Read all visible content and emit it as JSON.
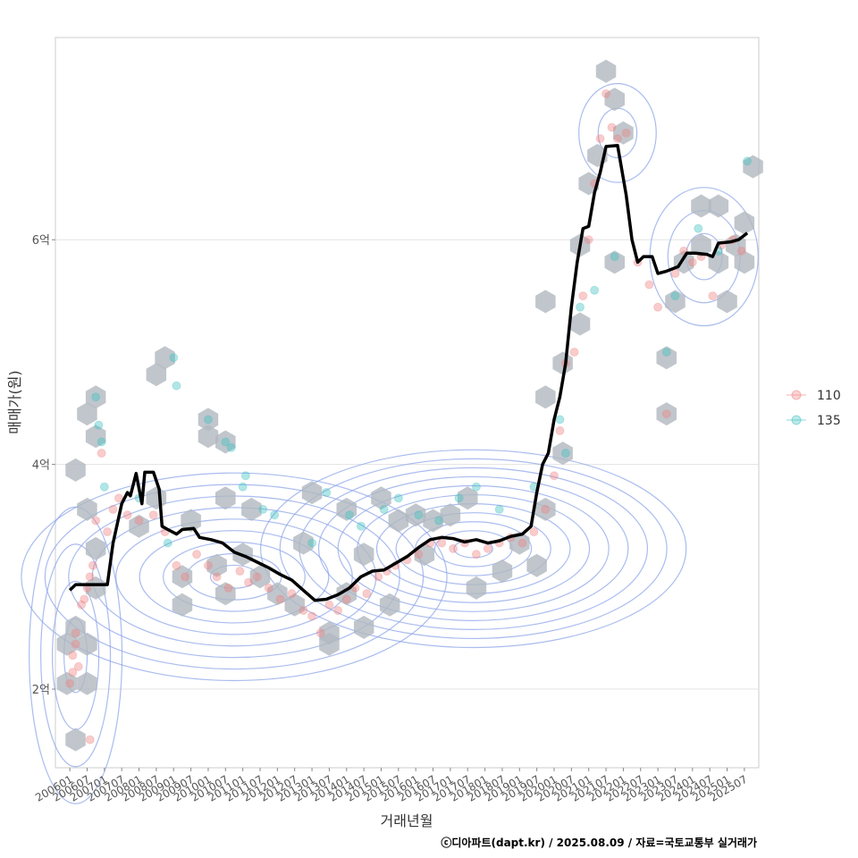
{
  "chart_data": {
    "type": "scatter",
    "xlabel": "거래년월",
    "ylabel": "매매가(원)",
    "credit": "ⓒ디아파트(dapt.kr) / 2025.08.09 / 자료=국토교통부 실거래가",
    "x_range": [
      "2005-08",
      "2025-12"
    ],
    "ylim": [
      1.3,
      7.8
    ],
    "y_ticks": [
      {
        "value": 2,
        "label": "2억"
      },
      {
        "value": 4,
        "label": "4억"
      },
      {
        "value": 6,
        "label": "6억"
      }
    ],
    "x_ticks": [
      "200601",
      "200607",
      "200701",
      "200707",
      "200801",
      "200807",
      "200901",
      "200907",
      "201001",
      "201007",
      "201101",
      "201107",
      "201201",
      "201207",
      "201301",
      "201307",
      "201401",
      "201407",
      "201501",
      "201507",
      "201601",
      "201607",
      "201701",
      "201707",
      "201801",
      "201807",
      "201901",
      "201907",
      "202001",
      "202007",
      "202101",
      "202107",
      "202201",
      "202207",
      "202301",
      "202307",
      "202401",
      "202407",
      "202501",
      "202507"
    ],
    "grid": true,
    "legend": {
      "position": "right",
      "entries": [
        {
          "name": "110",
          "color": "#f08080"
        },
        {
          "name": "135",
          "color": "#3cc1c1"
        }
      ]
    },
    "colors": {
      "series_110": "#f08080",
      "series_135": "#3cc1c1",
      "trend_line": "#000000",
      "hex_bins": "#b0b8bf",
      "contours": "#8ea6ea"
    },
    "series": [
      {
        "name": "110",
        "points": [
          {
            "x": "2006-01",
            "y": 2.05
          },
          {
            "x": "2006-02",
            "y": 2.15
          },
          {
            "x": "2006-02",
            "y": 2.3
          },
          {
            "x": "2006-03",
            "y": 2.4
          },
          {
            "x": "2006-03",
            "y": 2.5
          },
          {
            "x": "2006-04",
            "y": 2.2
          },
          {
            "x": "2006-05",
            "y": 2.75
          },
          {
            "x": "2006-06",
            "y": 2.8
          },
          {
            "x": "2006-07",
            "y": 2.9
          },
          {
            "x": "2006-08",
            "y": 3.0
          },
          {
            "x": "2006-09",
            "y": 3.1
          },
          {
            "x": "2006-10",
            "y": 3.5
          },
          {
            "x": "2006-12",
            "y": 4.1
          },
          {
            "x": "2007-02",
            "y": 3.4
          },
          {
            "x": "2007-04",
            "y": 3.6
          },
          {
            "x": "2007-06",
            "y": 3.7
          },
          {
            "x": "2006-08",
            "y": 1.55
          },
          {
            "x": "2007-09",
            "y": 3.55
          },
          {
            "x": "2008-01",
            "y": 3.5
          },
          {
            "x": "2008-06",
            "y": 3.55
          },
          {
            "x": "2008-10",
            "y": 3.4
          },
          {
            "x": "2009-02",
            "y": 3.1
          },
          {
            "x": "2009-05",
            "y": 3.0
          },
          {
            "x": "2009-09",
            "y": 3.2
          },
          {
            "x": "2010-01",
            "y": 3.1
          },
          {
            "x": "2010-04",
            "y": 3.0
          },
          {
            "x": "2010-08",
            "y": 2.9
          },
          {
            "x": "2010-12",
            "y": 3.05
          },
          {
            "x": "2011-03",
            "y": 2.95
          },
          {
            "x": "2011-06",
            "y": 3.0
          },
          {
            "x": "2011-10",
            "y": 2.9
          },
          {
            "x": "2012-02",
            "y": 2.8
          },
          {
            "x": "2012-06",
            "y": 2.85
          },
          {
            "x": "2012-10",
            "y": 2.7
          },
          {
            "x": "2013-01",
            "y": 2.65
          },
          {
            "x": "2013-04",
            "y": 2.5
          },
          {
            "x": "2013-07",
            "y": 2.75
          },
          {
            "x": "2013-10",
            "y": 2.7
          },
          {
            "x": "2014-01",
            "y": 2.8
          },
          {
            "x": "2014-04",
            "y": 2.9
          },
          {
            "x": "2014-08",
            "y": 2.85
          },
          {
            "x": "2014-12",
            "y": 3.0
          },
          {
            "x": "2015-03",
            "y": 3.05
          },
          {
            "x": "2015-06",
            "y": 3.1
          },
          {
            "x": "2015-10",
            "y": 3.15
          },
          {
            "x": "2016-02",
            "y": 3.2
          },
          {
            "x": "2016-06",
            "y": 3.3
          },
          {
            "x": "2016-10",
            "y": 3.3
          },
          {
            "x": "2017-02",
            "y": 3.25
          },
          {
            "x": "2017-06",
            "y": 3.3
          },
          {
            "x": "2017-10",
            "y": 3.2
          },
          {
            "x": "2018-02",
            "y": 3.25
          },
          {
            "x": "2018-06",
            "y": 3.3
          },
          {
            "x": "2018-10",
            "y": 3.35
          },
          {
            "x": "2019-02",
            "y": 3.3
          },
          {
            "x": "2019-06",
            "y": 3.4
          },
          {
            "x": "2019-10",
            "y": 3.6
          },
          {
            "x": "2020-01",
            "y": 3.9
          },
          {
            "x": "2020-03",
            "y": 4.3
          },
          {
            "x": "2020-05",
            "y": 4.9
          },
          {
            "x": "2020-08",
            "y": 5.0
          },
          {
            "x": "2020-11",
            "y": 5.5
          },
          {
            "x": "2021-01",
            "y": 6.0
          },
          {
            "x": "2021-03",
            "y": 6.5
          },
          {
            "x": "2021-05",
            "y": 6.9
          },
          {
            "x": "2021-07",
            "y": 7.3
          },
          {
            "x": "2021-09",
            "y": 7.0
          },
          {
            "x": "2021-11",
            "y": 6.9
          },
          {
            "x": "2022-02",
            "y": 6.95
          },
          {
            "x": "2022-06",
            "y": 5.8
          },
          {
            "x": "2022-10",
            "y": 5.6
          },
          {
            "x": "2023-01",
            "y": 5.4
          },
          {
            "x": "2023-04",
            "y": 4.45
          },
          {
            "x": "2023-07",
            "y": 5.7
          },
          {
            "x": "2023-10",
            "y": 5.9
          },
          {
            "x": "2024-01",
            "y": 5.8
          },
          {
            "x": "2024-04",
            "y": 5.85
          },
          {
            "x": "2024-08",
            "y": 5.5
          },
          {
            "x": "2024-11",
            "y": 5.95
          },
          {
            "x": "2025-03",
            "y": 6.0
          },
          {
            "x": "2025-06",
            "y": 5.9
          }
        ]
      },
      {
        "name": "135",
        "points": [
          {
            "x": "2006-10",
            "y": 4.6
          },
          {
            "x": "2006-11",
            "y": 4.35
          },
          {
            "x": "2006-12",
            "y": 4.2
          },
          {
            "x": "2007-01",
            "y": 3.8
          },
          {
            "x": "2008-01",
            "y": 3.7
          },
          {
            "x": "2008-11",
            "y": 3.3
          },
          {
            "x": "2009-01",
            "y": 4.95
          },
          {
            "x": "2009-02",
            "y": 4.7
          },
          {
            "x": "2010-01",
            "y": 4.4
          },
          {
            "x": "2010-07",
            "y": 4.2
          },
          {
            "x": "2010-09",
            "y": 4.15
          },
          {
            "x": "2011-01",
            "y": 3.8
          },
          {
            "x": "2011-02",
            "y": 3.9
          },
          {
            "x": "2011-08",
            "y": 3.6
          },
          {
            "x": "2011-12",
            "y": 3.55
          },
          {
            "x": "2013-01",
            "y": 3.3
          },
          {
            "x": "2013-06",
            "y": 3.75
          },
          {
            "x": "2014-02",
            "y": 3.55
          },
          {
            "x": "2014-06",
            "y": 3.45
          },
          {
            "x": "2015-02",
            "y": 3.6
          },
          {
            "x": "2015-07",
            "y": 3.7
          },
          {
            "x": "2016-02",
            "y": 3.55
          },
          {
            "x": "2016-09",
            "y": 3.5
          },
          {
            "x": "2017-04",
            "y": 3.7
          },
          {
            "x": "2017-10",
            "y": 3.8
          },
          {
            "x": "2018-06",
            "y": 3.6
          },
          {
            "x": "2019-06",
            "y": 3.8
          },
          {
            "x": "2020-03",
            "y": 4.4
          },
          {
            "x": "2020-05",
            "y": 4.1
          },
          {
            "x": "2020-10",
            "y": 5.4
          },
          {
            "x": "2021-03",
            "y": 5.55
          },
          {
            "x": "2021-10",
            "y": 5.85
          },
          {
            "x": "2023-04",
            "y": 5.0
          },
          {
            "x": "2023-07",
            "y": 5.5
          },
          {
            "x": "2024-03",
            "y": 6.1
          },
          {
            "x": "2024-10",
            "y": 5.9
          },
          {
            "x": "2025-08",
            "y": 6.7
          }
        ]
      }
    ],
    "trend_line": [
      {
        "x": "2006-01",
        "y": 2.88
      },
      {
        "x": "2006-03",
        "y": 2.93
      },
      {
        "x": "2007-02",
        "y": 2.93
      },
      {
        "x": "2007-04",
        "y": 3.3
      },
      {
        "x": "2007-07",
        "y": 3.65
      },
      {
        "x": "2007-09",
        "y": 3.75
      },
      {
        "x": "2007-10",
        "y": 3.72
      },
      {
        "x": "2007-12",
        "y": 3.92
      },
      {
        "x": "2008-02",
        "y": 3.65
      },
      {
        "x": "2008-03",
        "y": 3.93
      },
      {
        "x": "2008-06",
        "y": 3.93
      },
      {
        "x": "2008-08",
        "y": 3.78
      },
      {
        "x": "2008-09",
        "y": 3.45
      },
      {
        "x": "2008-11",
        "y": 3.42
      },
      {
        "x": "2009-02",
        "y": 3.38
      },
      {
        "x": "2009-04",
        "y": 3.42
      },
      {
        "x": "2009-08",
        "y": 3.43
      },
      {
        "x": "2009-10",
        "y": 3.35
      },
      {
        "x": "2010-02",
        "y": 3.33
      },
      {
        "x": "2010-06",
        "y": 3.3
      },
      {
        "x": "2010-10",
        "y": 3.22
      },
      {
        "x": "2011-02",
        "y": 3.18
      },
      {
        "x": "2011-06",
        "y": 3.13
      },
      {
        "x": "2011-10",
        "y": 3.08
      },
      {
        "x": "2012-02",
        "y": 3.02
      },
      {
        "x": "2012-06",
        "y": 2.97
      },
      {
        "x": "2012-10",
        "y": 2.88
      },
      {
        "x": "2013-02",
        "y": 2.79
      },
      {
        "x": "2013-06",
        "y": 2.8
      },
      {
        "x": "2013-10",
        "y": 2.84
      },
      {
        "x": "2014-02",
        "y": 2.9
      },
      {
        "x": "2014-06",
        "y": 3.0
      },
      {
        "x": "2014-10",
        "y": 3.05
      },
      {
        "x": "2015-02",
        "y": 3.06
      },
      {
        "x": "2015-06",
        "y": 3.12
      },
      {
        "x": "2015-10",
        "y": 3.18
      },
      {
        "x": "2016-02",
        "y": 3.26
      },
      {
        "x": "2016-06",
        "y": 3.33
      },
      {
        "x": "2016-10",
        "y": 3.35
      },
      {
        "x": "2017-02",
        "y": 3.34
      },
      {
        "x": "2017-06",
        "y": 3.31
      },
      {
        "x": "2017-10",
        "y": 3.33
      },
      {
        "x": "2018-02",
        "y": 3.3
      },
      {
        "x": "2018-06",
        "y": 3.32
      },
      {
        "x": "2018-10",
        "y": 3.36
      },
      {
        "x": "2019-02",
        "y": 3.38
      },
      {
        "x": "2019-05",
        "y": 3.45
      },
      {
        "x": "2019-07",
        "y": 3.75
      },
      {
        "x": "2019-09",
        "y": 4.0
      },
      {
        "x": "2019-11",
        "y": 4.1
      },
      {
        "x": "2020-01",
        "y": 4.4
      },
      {
        "x": "2020-03",
        "y": 4.6
      },
      {
        "x": "2020-05",
        "y": 4.9
      },
      {
        "x": "2020-07",
        "y": 5.4
      },
      {
        "x": "2020-09",
        "y": 5.8
      },
      {
        "x": "2020-11",
        "y": 6.1
      },
      {
        "x": "2021-01",
        "y": 6.12
      },
      {
        "x": "2021-03",
        "y": 6.42
      },
      {
        "x": "2021-05",
        "y": 6.6
      },
      {
        "x": "2021-07",
        "y": 6.83
      },
      {
        "x": "2021-11",
        "y": 6.84
      },
      {
        "x": "2022-02",
        "y": 6.4
      },
      {
        "x": "2022-04",
        "y": 6.0
      },
      {
        "x": "2022-06",
        "y": 5.8
      },
      {
        "x": "2022-08",
        "y": 5.85
      },
      {
        "x": "2022-11",
        "y": 5.85
      },
      {
        "x": "2023-01",
        "y": 5.7
      },
      {
        "x": "2023-04",
        "y": 5.72
      },
      {
        "x": "2023-08",
        "y": 5.76
      },
      {
        "x": "2023-11",
        "y": 5.88
      },
      {
        "x": "2024-02",
        "y": 5.88
      },
      {
        "x": "2024-06",
        "y": 5.87
      },
      {
        "x": "2024-08",
        "y": 5.85
      },
      {
        "x": "2024-10",
        "y": 5.97
      },
      {
        "x": "2025-02",
        "y": 5.98
      },
      {
        "x": "2025-05",
        "y": 6.0
      },
      {
        "x": "2025-08",
        "y": 6.06
      }
    ],
    "hex_bins": [
      {
        "x": "2005-12",
        "y": 2.05
      },
      {
        "x": "2005-12",
        "y": 2.4
      },
      {
        "x": "2006-03",
        "y": 2.55
      },
      {
        "x": "2006-07",
        "y": 2.05
      },
      {
        "x": "2006-07",
        "y": 2.4
      },
      {
        "x": "2006-03",
        "y": 1.55
      },
      {
        "x": "2006-03",
        "y": 3.95
      },
      {
        "x": "2006-07",
        "y": 4.45
      },
      {
        "x": "2006-10",
        "y": 4.6
      },
      {
        "x": "2006-10",
        "y": 4.25
      },
      {
        "x": "2006-10",
        "y": 3.25
      },
      {
        "x": "2006-10",
        "y": 2.9
      },
      {
        "x": "2006-07",
        "y": 3.6
      },
      {
        "x": "2008-01",
        "y": 3.45
      },
      {
        "x": "2008-07",
        "y": 3.7
      },
      {
        "x": "2008-10",
        "y": 4.95
      },
      {
        "x": "2008-07",
        "y": 4.8
      },
      {
        "x": "2009-07",
        "y": 3.5
      },
      {
        "x": "2009-04",
        "y": 3.0
      },
      {
        "x": "2009-04",
        "y": 2.75
      },
      {
        "x": "2010-01",
        "y": 4.4
      },
      {
        "x": "2010-01",
        "y": 4.25
      },
      {
        "x": "2010-07",
        "y": 4.2
      },
      {
        "x": "2010-07",
        "y": 3.7
      },
      {
        "x": "2011-04",
        "y": 3.6
      },
      {
        "x": "2010-04",
        "y": 3.1
      },
      {
        "x": "2010-07",
        "y": 2.85
      },
      {
        "x": "2011-01",
        "y": 3.2
      },
      {
        "x": "2011-07",
        "y": 3.0
      },
      {
        "x": "2012-01",
        "y": 2.85
      },
      {
        "x": "2012-07",
        "y": 2.75
      },
      {
        "x": "2012-10",
        "y": 3.3
      },
      {
        "x": "2013-01",
        "y": 3.75
      },
      {
        "x": "2013-07",
        "y": 2.5
      },
      {
        "x": "2013-07",
        "y": 2.4
      },
      {
        "x": "2014-01",
        "y": 3.6
      },
      {
        "x": "2014-01",
        "y": 2.85
      },
      {
        "x": "2014-07",
        "y": 3.2
      },
      {
        "x": "2014-07",
        "y": 2.55
      },
      {
        "x": "2015-01",
        "y": 3.7
      },
      {
        "x": "2015-04",
        "y": 2.75
      },
      {
        "x": "2015-07",
        "y": 3.5
      },
      {
        "x": "2016-01",
        "y": 3.55
      },
      {
        "x": "2016-04",
        "y": 3.2
      },
      {
        "x": "2016-07",
        "y": 3.5
      },
      {
        "x": "2017-01",
        "y": 3.55
      },
      {
        "x": "2017-07",
        "y": 3.7
      },
      {
        "x": "2017-10",
        "y": 2.9
      },
      {
        "x": "2018-07",
        "y": 3.05
      },
      {
        "x": "2019-01",
        "y": 3.3
      },
      {
        "x": "2019-07",
        "y": 3.1
      },
      {
        "x": "2019-10",
        "y": 3.6
      },
      {
        "x": "2019-10",
        "y": 5.45
      },
      {
        "x": "2019-10",
        "y": 4.6
      },
      {
        "x": "2020-04",
        "y": 4.1
      },
      {
        "x": "2020-04",
        "y": 4.9
      },
      {
        "x": "2020-10",
        "y": 5.25
      },
      {
        "x": "2020-10",
        "y": 5.95
      },
      {
        "x": "2021-01",
        "y": 6.5
      },
      {
        "x": "2021-04",
        "y": 6.75
      },
      {
        "x": "2021-07",
        "y": 7.5
      },
      {
        "x": "2021-10",
        "y": 7.25
      },
      {
        "x": "2022-01",
        "y": 6.95
      },
      {
        "x": "2021-10",
        "y": 5.8
      },
      {
        "x": "2023-04",
        "y": 4.45
      },
      {
        "x": "2023-04",
        "y": 4.95
      },
      {
        "x": "2023-07",
        "y": 5.45
      },
      {
        "x": "2023-10",
        "y": 5.8
      },
      {
        "x": "2024-04",
        "y": 6.3
      },
      {
        "x": "2024-04",
        "y": 5.95
      },
      {
        "x": "2024-10",
        "y": 6.3
      },
      {
        "x": "2024-10",
        "y": 5.8
      },
      {
        "x": "2025-01",
        "y": 5.45
      },
      {
        "x": "2025-04",
        "y": 5.95
      },
      {
        "x": "2025-07",
        "y": 6.15
      },
      {
        "x": "2025-07",
        "y": 5.8
      },
      {
        "x": "2025-10",
        "y": 6.65
      }
    ]
  }
}
